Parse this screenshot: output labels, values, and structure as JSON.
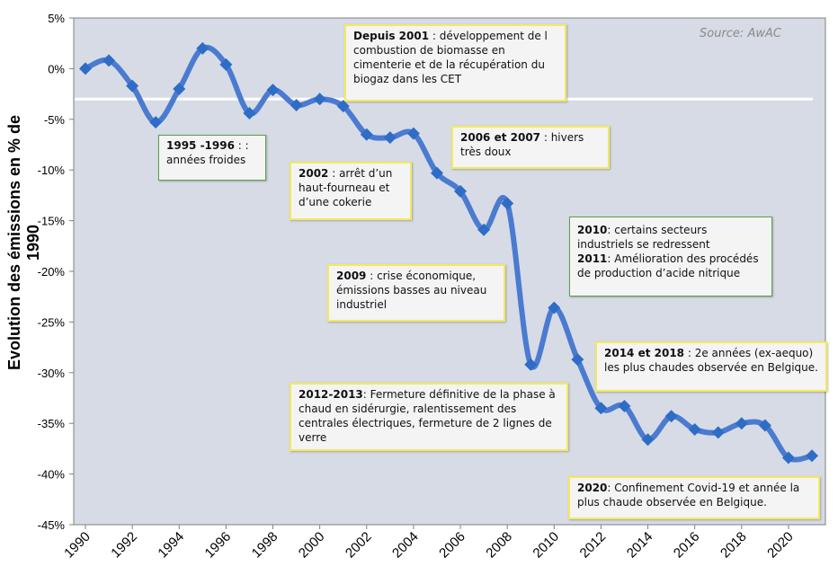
{
  "chart_data": {
    "type": "line",
    "ylabel": "Evolution des émissions en % de 1990",
    "source": "Source: AwAC",
    "ylim": [
      -45,
      5
    ],
    "xlim": [
      1990,
      2021
    ],
    "yticks": [
      5,
      0,
      -5,
      -10,
      -15,
      -20,
      -25,
      -30,
      -35,
      -40,
      -45
    ],
    "ytick_labels": [
      "5%",
      "0%",
      "-5%",
      "-10%",
      "-15%",
      "-20%",
      "-25%",
      "-30%",
      "-35%",
      "-40%",
      "-45%"
    ],
    "xtick_labels": [
      "1990",
      "1992",
      "1994",
      "1996",
      "1998",
      "2000",
      "2002",
      "2004",
      "2006",
      "2008",
      "2010",
      "2012",
      "2014",
      "2016",
      "2018",
      "2020"
    ],
    "grid": false,
    "reference_line": -3,
    "series": [
      {
        "x": [
          1990,
          1991,
          1992,
          1993,
          1994,
          1995,
          1996,
          1997,
          1998,
          1999,
          2000,
          2001,
          2002,
          2003,
          2004,
          2005,
          2006,
          2007,
          2008,
          2009,
          2010,
          2011,
          2012,
          2013,
          2014,
          2015,
          2016,
          2017,
          2018,
          2019,
          2020,
          2021
        ],
        "y": [
          0,
          0.8,
          -1.7,
          -5.3,
          -2.0,
          2.0,
          0.4,
          -4.4,
          -2.1,
          -3.6,
          -3.0,
          -3.7,
          -6.5,
          -6.8,
          -6.4,
          -10.3,
          -12.1,
          -15.9,
          -13.3,
          -29.2,
          -23.6,
          -28.7,
          -33.5,
          -33.3,
          -36.6,
          -34.3,
          -35.6,
          -35.9,
          -35.0,
          -35.2,
          -38.4,
          -38.2
        ],
        "color": "#4472c4"
      }
    ],
    "annotations": [
      {
        "bold": "Depuis 2001",
        "lines": [
          " : développement de l",
          "combustion de biomasse en",
          "cimenterie et de la récupération du",
          "biogaz dans les CET"
        ]
      },
      {
        "bold": "1995 -1996",
        "lines": [
          " : :",
          "années froides"
        ]
      },
      {
        "bold": "2002",
        "lines": [
          " : arrêt d’un",
          "haut-fourneau et",
          "d’une cokerie"
        ]
      },
      {
        "bold": "2006 et 2007",
        "lines": [
          " : hivers",
          "très doux"
        ]
      },
      {
        "bold": "2009",
        "lines": [
          " :  crise économique,",
          "émissions basses au niveau",
          "industriel"
        ]
      },
      {
        "bold": "2010",
        "lines": [
          ": certains secteurs",
          "industriels se redressent"
        ],
        "bold2": "2011",
        "lines2": [
          ": Amélioration des procédés",
          "de production d’acide nitrique"
        ]
      },
      {
        "bold": "2014 et 2018",
        "lines": [
          " : 2e années (ex-aequo)",
          "les plus chaudes observée en Belgique."
        ]
      },
      {
        "bold": "2012-2013",
        "lines": [
          ": Fermeture définitive de la phase à",
          "chaud en sidérurgie, ralentissement des",
          "centrales électriques, fermeture de 2 lignes de",
          "verre"
        ]
      },
      {
        "bold": "2020",
        "lines": [
          ": Confinement Covid-19 et année la",
          "plus chaude observée en Belgique."
        ]
      }
    ]
  }
}
